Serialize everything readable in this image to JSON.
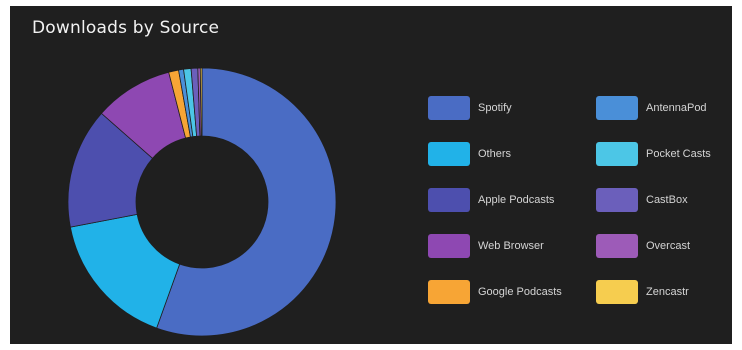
{
  "chart_data": {
    "type": "pie",
    "title": "Downloads by Source",
    "donut": true,
    "legend_position": "right",
    "series": [
      {
        "name": "Spotify",
        "value": 55.5,
        "color": "#4a6cc4"
      },
      {
        "name": "AntennaPod",
        "value": 0.0,
        "color": "#4a8fd8"
      },
      {
        "name": "Others",
        "value": 16.5,
        "color": "#21b2e8"
      },
      {
        "name": "Pocket Casts",
        "value": 0.0,
        "color": "#4cc6e6"
      },
      {
        "name": "Apple Podcasts",
        "value": 14.5,
        "color": "#4d4fae"
      },
      {
        "name": "CastBox",
        "value": 0.0,
        "color": "#6b5fbb"
      },
      {
        "name": "Web Browser",
        "value": 9.5,
        "color": "#8e48b2"
      },
      {
        "name": "Overcast",
        "value": 0.0,
        "color": "#9d5bb8"
      },
      {
        "name": "Google Podcasts",
        "value": 1.2,
        "color": "#f7a535"
      },
      {
        "name": "Zencastr",
        "value": 0.0,
        "color": "#f6cd4f"
      }
    ],
    "small_slices": [
      {
        "name": "AntennaPod",
        "value": 0.6,
        "color": "#4a8fd8"
      },
      {
        "name": "Pocket Casts",
        "value": 0.9,
        "color": "#4cc6e6"
      },
      {
        "name": "CastBox",
        "value": 0.8,
        "color": "#6b5fbb"
      },
      {
        "name": "Overcast",
        "value": 0.3,
        "color": "#9d5bb8"
      },
      {
        "name": "Zencastr",
        "value": 0.2,
        "color": "#f6cd4f"
      }
    ],
    "slice_order": [
      "Spotify",
      "Others",
      "Apple Podcasts",
      "Web Browser",
      "Google Podcasts",
      "AntennaPod",
      "Pocket Casts",
      "CastBox",
      "Overcast",
      "Zencastr"
    ]
  }
}
